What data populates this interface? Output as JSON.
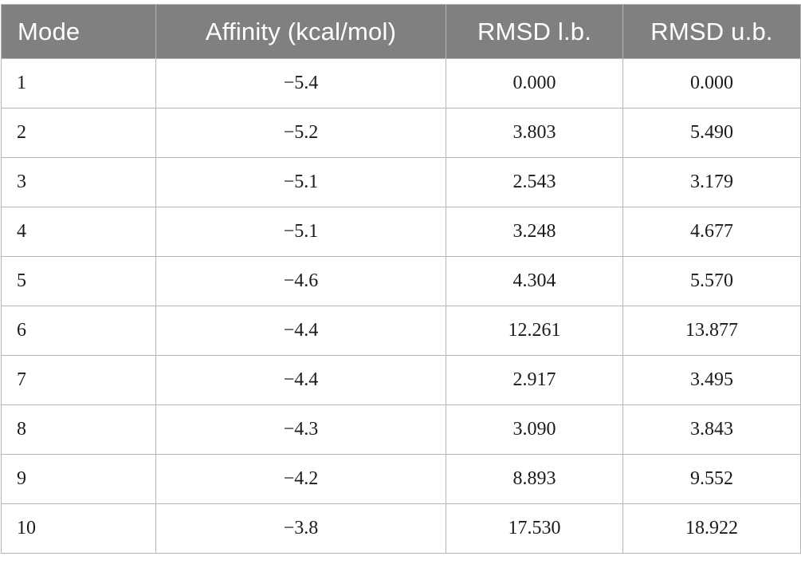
{
  "table": {
    "headers": [
      "Mode",
      "Affinity (kcal/mol)",
      "RMSD l.b.",
      "RMSD u.b."
    ],
    "rows": [
      [
        "1",
        "−5.4",
        "0.000",
        "0.000"
      ],
      [
        "2",
        "−5.2",
        "3.803",
        "5.490"
      ],
      [
        "3",
        "−5.1",
        "2.543",
        "3.179"
      ],
      [
        "4",
        "−5.1",
        "3.248",
        "4.677"
      ],
      [
        "5",
        "−4.6",
        "4.304",
        "5.570"
      ],
      [
        "6",
        "−4.4",
        "12.261",
        "13.877"
      ],
      [
        "7",
        "−4.4",
        "2.917",
        "3.495"
      ],
      [
        "8",
        "−4.3",
        "3.090",
        "3.843"
      ],
      [
        "9",
        "−4.2",
        "8.893",
        "9.552"
      ],
      [
        "10",
        "−3.8",
        "17.530",
        "18.922"
      ]
    ]
  },
  "colors": {
    "header_bg": "#7f8180",
    "header_text": "#ffffff",
    "border": "#b5b5b5"
  }
}
